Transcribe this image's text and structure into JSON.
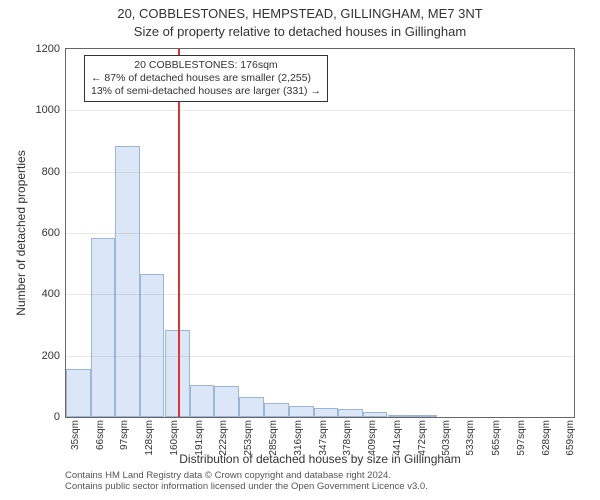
{
  "title_line1": "20, COBBLESTONES, HEMPSTEAD, GILLINGHAM, ME7 3NT",
  "title_line2": "Size of property relative to detached houses in Gillingham",
  "ylabel": "Number of detached properties",
  "xlabel": "Distribution of detached houses by size in Gillingham",
  "footer_line1": "Contains HM Land Registry data © Crown copyright and database right 2024.",
  "footer_line2": "Contains public sector information licensed under the Open Government Licence v3.0.",
  "chart": {
    "type": "histogram",
    "background_color": "#ffffff",
    "border_color": "#666666",
    "bar_fill": "#dbe7f6",
    "bar_stroke": "#9ab6da",
    "reference_line_color": "#e03030",
    "x_min": 35,
    "x_max": 675,
    "x_bin_width": 31,
    "x_tick_values": [
      35,
      66,
      97,
      128,
      160,
      191,
      222,
      253,
      285,
      316,
      347,
      378,
      409,
      441,
      472,
      503,
      533,
      565,
      597,
      628,
      659
    ],
    "x_tick_unit": "sqm",
    "ylim": [
      0,
      1200
    ],
    "ytick_step": 200,
    "yticks": [
      0,
      200,
      400,
      600,
      800,
      1000,
      1200
    ],
    "bin_starts": [
      35,
      66,
      97,
      128,
      160,
      191,
      222,
      253,
      285,
      316,
      347,
      378,
      409,
      441,
      472,
      503,
      533,
      565,
      597,
      628,
      659
    ],
    "counts": [
      155,
      585,
      885,
      465,
      285,
      105,
      100,
      65,
      45,
      35,
      30,
      25,
      15,
      5,
      5,
      0,
      0,
      0,
      0,
      0,
      0
    ],
    "reference_value": 176,
    "annotation": {
      "lines": [
        "20 COBBLESTONES: 176sqm",
        "← 87% of detached houses are smaller (2,255)",
        "13% of semi-detached houses are larger (331) →"
      ],
      "border_color": "#333333",
      "background": "#ffffff",
      "fontsize": 10.5
    },
    "label_fontsize": 12,
    "tick_fontsize": 11,
    "xtick_fontsize": 10
  },
  "title_fontsize": 13
}
